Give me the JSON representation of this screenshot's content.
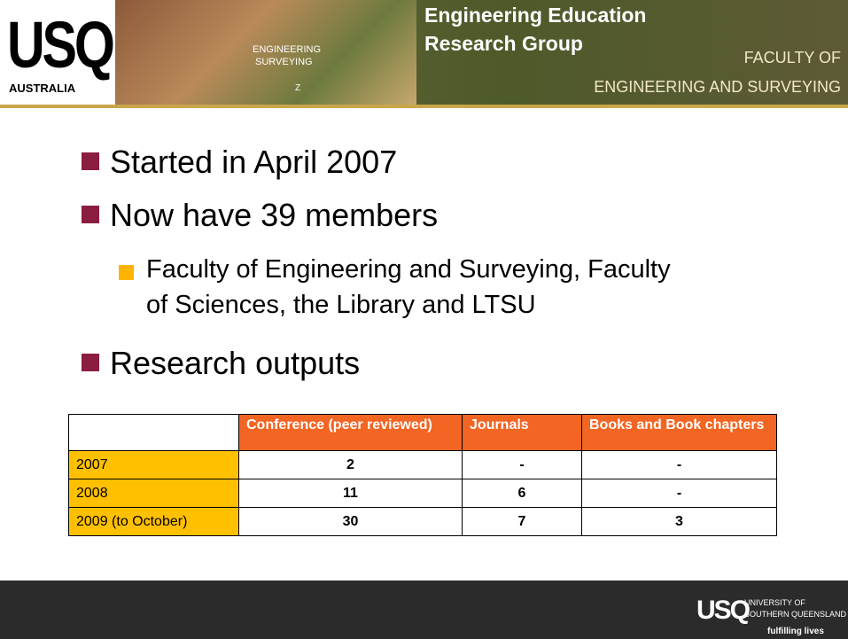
{
  "header": {
    "logo": "USQ",
    "logo_sub": "AUSTRALIA",
    "sign": [
      "ENGINEERING",
      "SURVEYING",
      "Z"
    ],
    "title": [
      "Engineering Education",
      "Research Group"
    ],
    "faculty": [
      "FACULTY OF",
      "ENGINEERING AND SURVEYING"
    ]
  },
  "bullets": [
    {
      "text": "Started in April 2007"
    },
    {
      "text": "Now have 39 members",
      "sub": [
        "Faculty of Engineering and Surveying, Faculty",
        "of Sciences, the Library and LTSU"
      ]
    },
    {
      "text": "Research outputs"
    }
  ],
  "table": {
    "columns": [
      "Conference (peer reviewed)",
      "Journals",
      "Books and Book chapters"
    ],
    "rows": [
      [
        "2007",
        2,
        "-",
        "-"
      ],
      [
        "2008",
        11,
        6,
        "-"
      ],
      [
        "2009 (to October)",
        30,
        7,
        3
      ]
    ]
  },
  "footer": {
    "logo": "USQ",
    "name": [
      "UNIVERSITY OF",
      "SOUTHERN QUEENSLAND"
    ],
    "tagline": "fulfilling lives"
  }
}
